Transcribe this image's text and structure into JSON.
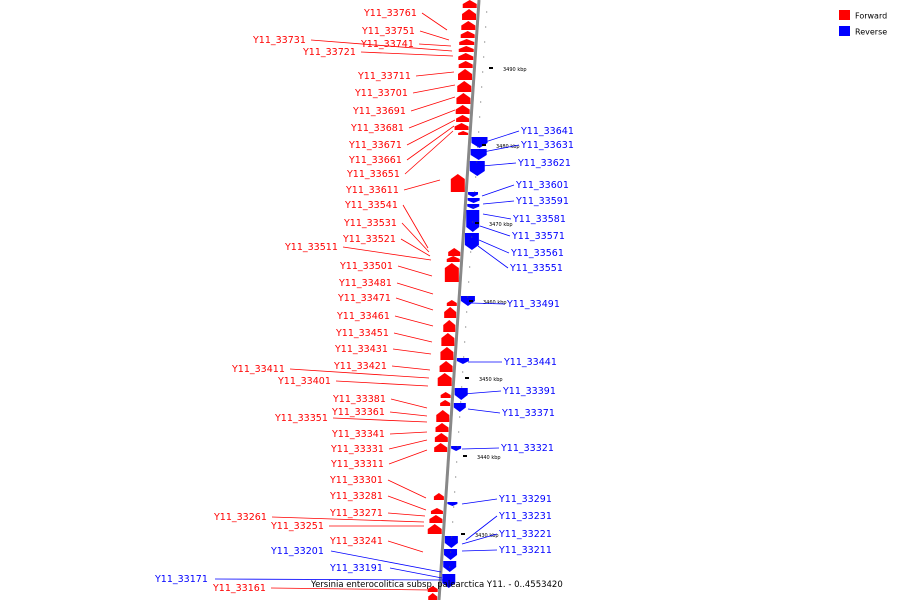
{
  "colors": {
    "forward": "#ff0000",
    "reverse": "#0000ff",
    "backbone": "#888888"
  },
  "legend": [
    {
      "label": "Forward",
      "color": "#ff0000"
    },
    {
      "label": "Reverse",
      "color": "#0000ff"
    }
  ],
  "title": "Yersinia enterocolitica subsp. palearctica Y11. - 0..4553420",
  "ticks": [
    "3490 kbp",
    "3480 kbp",
    "3470 kbp",
    "3460 kbp",
    "3450 kbp",
    "3440 kbp",
    "3430 kbp"
  ],
  "forward_genes": [
    "Y11_33761",
    "Y11_33751",
    "Y11_33741",
    "Y11_33731",
    "Y11_33721",
    "Y11_33711",
    "Y11_33701",
    "Y11_33691",
    "Y11_33681",
    "Y11_33671",
    "Y11_33661",
    "Y11_33651",
    "Y11_33611",
    "Y11_33541",
    "Y11_33531",
    "Y11_33521",
    "Y11_33511",
    "Y11_33501",
    "Y11_33481",
    "Y11_33471",
    "Y11_33461",
    "Y11_33451",
    "Y11_33431",
    "Y11_33421",
    "Y11_33411",
    "Y11_33401",
    "Y11_33381",
    "Y11_33361",
    "Y11_33351",
    "Y11_33341",
    "Y11_33331",
    "Y11_33311",
    "Y11_33301",
    "Y11_33281",
    "Y11_33271",
    "Y11_33261",
    "Y11_33251",
    "Y11_33241",
    "Y11_33161"
  ],
  "reverse_genes": [
    "Y11_33641",
    "Y11_33631",
    "Y11_33621",
    "Y11_33601",
    "Y11_33591",
    "Y11_33581",
    "Y11_33571",
    "Y11_33561",
    "Y11_33551",
    "Y11_33491",
    "Y11_33441",
    "Y11_33391",
    "Y11_33371",
    "Y11_33321",
    "Y11_33291",
    "Y11_33231",
    "Y11_33221",
    "Y11_33211",
    "Y11_33201",
    "Y11_33191",
    "Y11_33171"
  ]
}
